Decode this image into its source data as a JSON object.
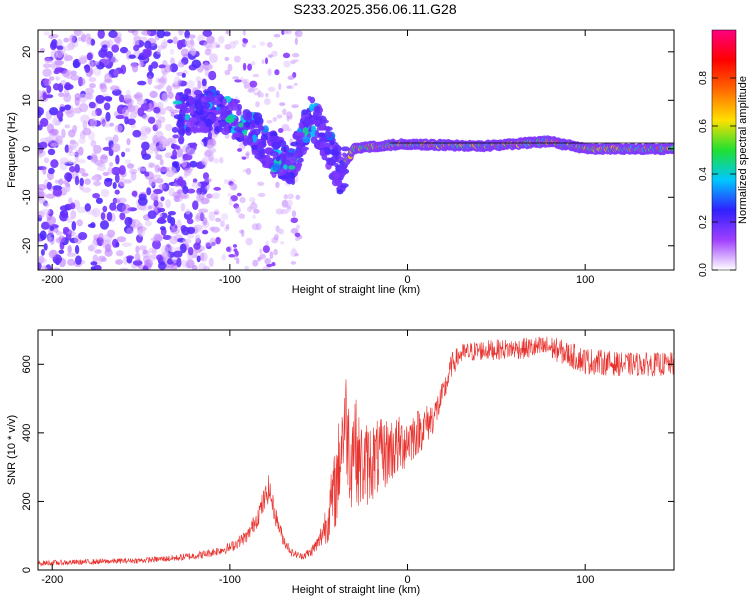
{
  "title": "S233.2025.356.06.11.G28",
  "colors": {
    "snr_line": "#e8322e",
    "frame": "#000000",
    "background": "#ffffff"
  },
  "chart_data": [
    {
      "type": "heatmap",
      "name": "spectrogram",
      "xlabel": "Height of straight line (km)",
      "ylabel": "Frequency (Hz)",
      "xlim": [
        -208,
        150
      ],
      "ylim": [
        -25,
        24.5
      ],
      "xticks": [
        -200,
        -100,
        0,
        100
      ],
      "yticks": [
        -20,
        -10,
        0,
        10,
        20
      ],
      "colorbar": {
        "label": "Normalized spectral amplitude",
        "range": [
          0,
          1
        ],
        "ticks": [
          0.0,
          0.2,
          0.4,
          0.6,
          0.8
        ],
        "colormap": [
          "#ffffff",
          "#a040ff",
          "#3020ff",
          "#00c8ff",
          "#20e030",
          "#ffe000",
          "#ff6a00",
          "#ff0000",
          "#ff0080"
        ]
      },
      "ridge": [
        {
          "x": -130,
          "f": 7
        },
        {
          "x": -110,
          "f": 8
        },
        {
          "x": -95,
          "f": 6
        },
        {
          "x": -85,
          "f": 3
        },
        {
          "x": -75,
          "f": -1
        },
        {
          "x": -65,
          "f": -4
        },
        {
          "x": -55,
          "f": 7
        },
        {
          "x": -48,
          "f": 3
        },
        {
          "x": -43,
          "f": -1
        },
        {
          "x": -38,
          "f": -5
        },
        {
          "x": -30,
          "f": 0
        },
        {
          "x": -20,
          "f": 0.5
        },
        {
          "x": 0,
          "f": 1
        },
        {
          "x": 40,
          "f": 0.5
        },
        {
          "x": 80,
          "f": 1.5
        },
        {
          "x": 100,
          "f": 0
        },
        {
          "x": 150,
          "f": 0
        }
      ]
    },
    {
      "type": "line",
      "name": "snr",
      "xlabel": "Height of straight line (km)",
      "ylabel": "SNR (10 * v/v)",
      "xlim": [
        -208,
        150
      ],
      "ylim": [
        0,
        700
      ],
      "xticks": [
        -200,
        -100,
        0,
        100
      ],
      "yticks": [
        0,
        200,
        400,
        600
      ],
      "series": [
        {
          "name": "SNR",
          "x": [
            -208,
            -190,
            -170,
            -150,
            -130,
            -115,
            -100,
            -90,
            -85,
            -80,
            -78,
            -75,
            -70,
            -65,
            -60,
            -55,
            -50,
            -45,
            -40,
            -37,
            -35,
            -32,
            -30,
            -28,
            -25,
            -20,
            -15,
            -10,
            -5,
            0,
            5,
            10,
            15,
            20,
            25,
            30,
            40,
            60,
            80,
            100,
            120,
            150
          ],
          "values": [
            20,
            22,
            25,
            28,
            35,
            45,
            65,
            100,
            150,
            210,
            240,
            170,
            90,
            50,
            40,
            50,
            80,
            150,
            250,
            380,
            450,
            320,
            400,
            320,
            300,
            320,
            330,
            350,
            360,
            380,
            400,
            420,
            450,
            510,
            600,
            630,
            640,
            645,
            650,
            610,
            600,
            600
          ],
          "noise": [
            8,
            8,
            8,
            8,
            10,
            12,
            15,
            20,
            30,
            40,
            40,
            30,
            20,
            12,
            10,
            15,
            25,
            70,
            130,
            150,
            150,
            160,
            150,
            140,
            130,
            120,
            110,
            100,
            90,
            80,
            70,
            60,
            50,
            40,
            35,
            30,
            30,
            30,
            35,
            40,
            35,
            35
          ]
        }
      ]
    }
  ]
}
